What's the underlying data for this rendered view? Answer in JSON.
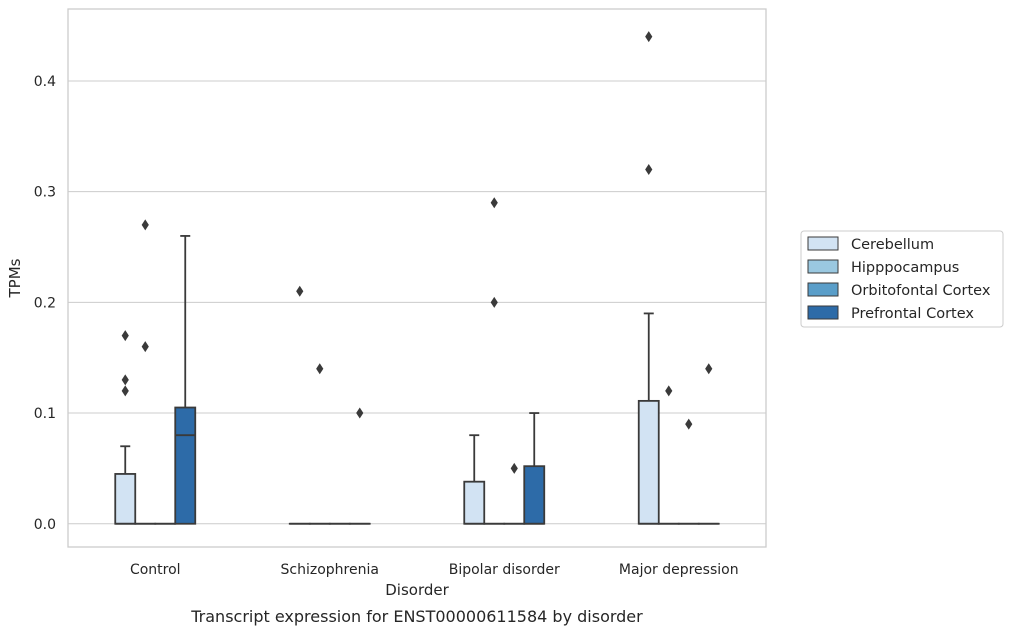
{
  "chart_data": {
    "type": "box",
    "caption": "Transcript expression for ENST00000611584 by disorder",
    "xlabel": "Disorder",
    "ylabel": "TPMs",
    "ylim": [
      -0.021,
      0.465
    ],
    "yticks": [
      0.0,
      0.1,
      0.2,
      0.3,
      0.4
    ],
    "ytick_labels": [
      "0.0",
      "0.1",
      "0.2",
      "0.3",
      "0.4"
    ],
    "grid": "horizontal",
    "legend_position": "right",
    "categories": [
      "Control",
      "Schizophrenia",
      "Bipolar disorder",
      "Major depression"
    ],
    "series": [
      {
        "name": "Cerebellum",
        "color": "#d2e3f3",
        "boxes": [
          {
            "q1": 0.0,
            "median": 0.0,
            "q3": 0.045,
            "whisker_low": 0.0,
            "whisker_high": 0.07,
            "outliers": [
              0.12,
              0.13,
              0.17
            ]
          },
          {
            "q1": 0.0,
            "median": 0.0,
            "q3": 0.0,
            "whisker_low": 0.0,
            "whisker_high": 0.0,
            "outliers": [
              0.21
            ]
          },
          {
            "q1": 0.0,
            "median": 0.0,
            "q3": 0.038,
            "whisker_low": 0.0,
            "whisker_high": 0.08,
            "outliers": []
          },
          {
            "q1": 0.0,
            "median": 0.0,
            "q3": 0.111,
            "whisker_low": 0.0,
            "whisker_high": 0.19,
            "outliers": [
              0.32,
              0.44
            ]
          }
        ]
      },
      {
        "name": "Hipppocampus",
        "color": "#9ac8e0",
        "boxes": [
          {
            "q1": 0.0,
            "median": 0.0,
            "q3": 0.0,
            "whisker_low": 0.0,
            "whisker_high": 0.0,
            "outliers": [
              0.16,
              0.27
            ]
          },
          {
            "q1": 0.0,
            "median": 0.0,
            "q3": 0.0,
            "whisker_low": 0.0,
            "whisker_high": 0.0,
            "outliers": [
              0.14
            ]
          },
          {
            "q1": 0.0,
            "median": 0.0,
            "q3": 0.0,
            "whisker_low": 0.0,
            "whisker_high": 0.0,
            "outliers": [
              0.2,
              0.29
            ]
          },
          {
            "q1": 0.0,
            "median": 0.0,
            "q3": 0.0,
            "whisker_low": 0.0,
            "whisker_high": 0.0,
            "outliers": [
              0.12
            ]
          }
        ]
      },
      {
        "name": "Orbitofontal Cortex",
        "color": "#5a9ec9",
        "boxes": [
          {
            "q1": 0.0,
            "median": 0.0,
            "q3": 0.0,
            "whisker_low": 0.0,
            "whisker_high": 0.0,
            "outliers": []
          },
          {
            "q1": 0.0,
            "median": 0.0,
            "q3": 0.0,
            "whisker_low": 0.0,
            "whisker_high": 0.0,
            "outliers": []
          },
          {
            "q1": 0.0,
            "median": 0.0,
            "q3": 0.0,
            "whisker_low": 0.0,
            "whisker_high": 0.0,
            "outliers": [
              0.05
            ]
          },
          {
            "q1": 0.0,
            "median": 0.0,
            "q3": 0.0,
            "whisker_low": 0.0,
            "whisker_high": 0.0,
            "outliers": [
              0.09
            ]
          }
        ]
      },
      {
        "name": "Prefrontal Cortex",
        "color": "#2d6ba8",
        "boxes": [
          {
            "q1": 0.0,
            "median": 0.08,
            "q3": 0.105,
            "whisker_low": 0.0,
            "whisker_high": 0.26,
            "outliers": []
          },
          {
            "q1": 0.0,
            "median": 0.0,
            "q3": 0.0,
            "whisker_low": 0.0,
            "whisker_high": 0.0,
            "outliers": [
              0.1
            ]
          },
          {
            "q1": 0.0,
            "median": 0.0,
            "q3": 0.052,
            "whisker_low": 0.0,
            "whisker_high": 0.1,
            "outliers": []
          },
          {
            "q1": 0.0,
            "median": 0.0,
            "q3": 0.0,
            "whisker_low": 0.0,
            "whisker_high": 0.0,
            "outliers": [
              0.14
            ]
          }
        ]
      }
    ],
    "style": {
      "edge_color": "#3a3a3a",
      "grid_color": "#cccccc",
      "frame_color": "#cccccc"
    }
  }
}
